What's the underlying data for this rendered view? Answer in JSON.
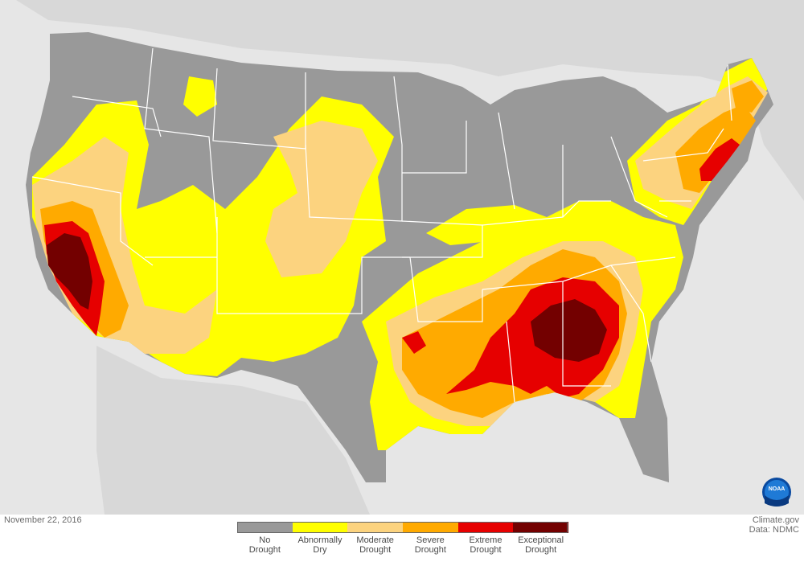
{
  "date": "November 22, 2016",
  "credits": {
    "site": "Climate.gov",
    "data": "Data: NDMC"
  },
  "logo": {
    "text": "NOAA",
    "icon": "noaa-logo-icon"
  },
  "legend": [
    {
      "label": "No\nDrought",
      "color": "#999999"
    },
    {
      "label": "Abnormally\nDry",
      "color": "#ffff00"
    },
    {
      "label": "Moderate\nDrought",
      "color": "#fcd37f"
    },
    {
      "label": "Severe\nDrought",
      "color": "#ffaa00"
    },
    {
      "label": "Extreme\nDrought",
      "color": "#e60000"
    },
    {
      "label": "Exceptional\nDrought",
      "color": "#730000"
    }
  ],
  "colors": {
    "background": "#e6e6e6",
    "land_outside": "#d8d8d8",
    "state_border": "#ffffff",
    "no_drought": "#999999",
    "abnormally_dry": "#ffff00",
    "moderate": "#fcd37f",
    "severe": "#ffaa00",
    "extreme": "#e60000",
    "exceptional": "#730000"
  }
}
